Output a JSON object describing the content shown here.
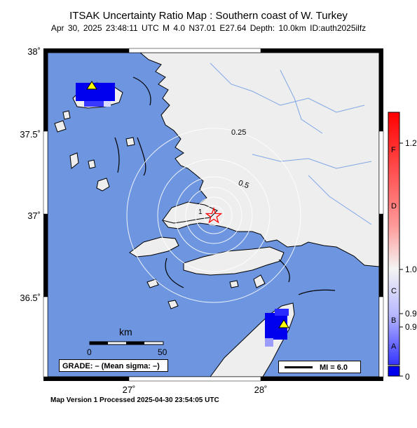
{
  "header": {
    "title": "ITSAK Uncertainty Ratio Map : Southern coast of W. Turkey",
    "subtitle": "Apr 30, 2025 23:48:11 UTC   M 4.0   N37.01 E27.64   Depth: 10.0km   ID:auth2025ilfz"
  },
  "axes": {
    "lat_labels": [
      "38˚",
      "37.5˚",
      "37˚",
      "36.5˚"
    ],
    "lon_labels": [
      "27˚",
      "28˚"
    ]
  },
  "contours": {
    "labels": [
      "0.25",
      "0.5",
      "1"
    ]
  },
  "scale_bar": {
    "unit": "km",
    "start": "0",
    "end": "50"
  },
  "grade_box": {
    "text": "GRADE: – (Mean sigma: –)"
  },
  "mi_legend": {
    "text": "MI = 6.0"
  },
  "colorbar": {
    "grades": [
      "F",
      "D",
      "C",
      "B",
      "A"
    ],
    "values": [
      "1.2",
      "1.0",
      "0.9",
      "0.9",
      "0"
    ],
    "colors": {
      "top": "#ff0000",
      "mid": "#f4f4f4",
      "bottom": "#0000ff"
    }
  },
  "footer": {
    "text": "Map Version 1 Processed 2025-04-30 23:54:05 UTC"
  },
  "map_colors": {
    "sea": "#6d95e0",
    "land": "#eeeeee",
    "station": "#ffff00",
    "epicenter": "#ff0000"
  },
  "icons": {
    "epicenter": "star-icon",
    "station": "triangle-icon"
  }
}
